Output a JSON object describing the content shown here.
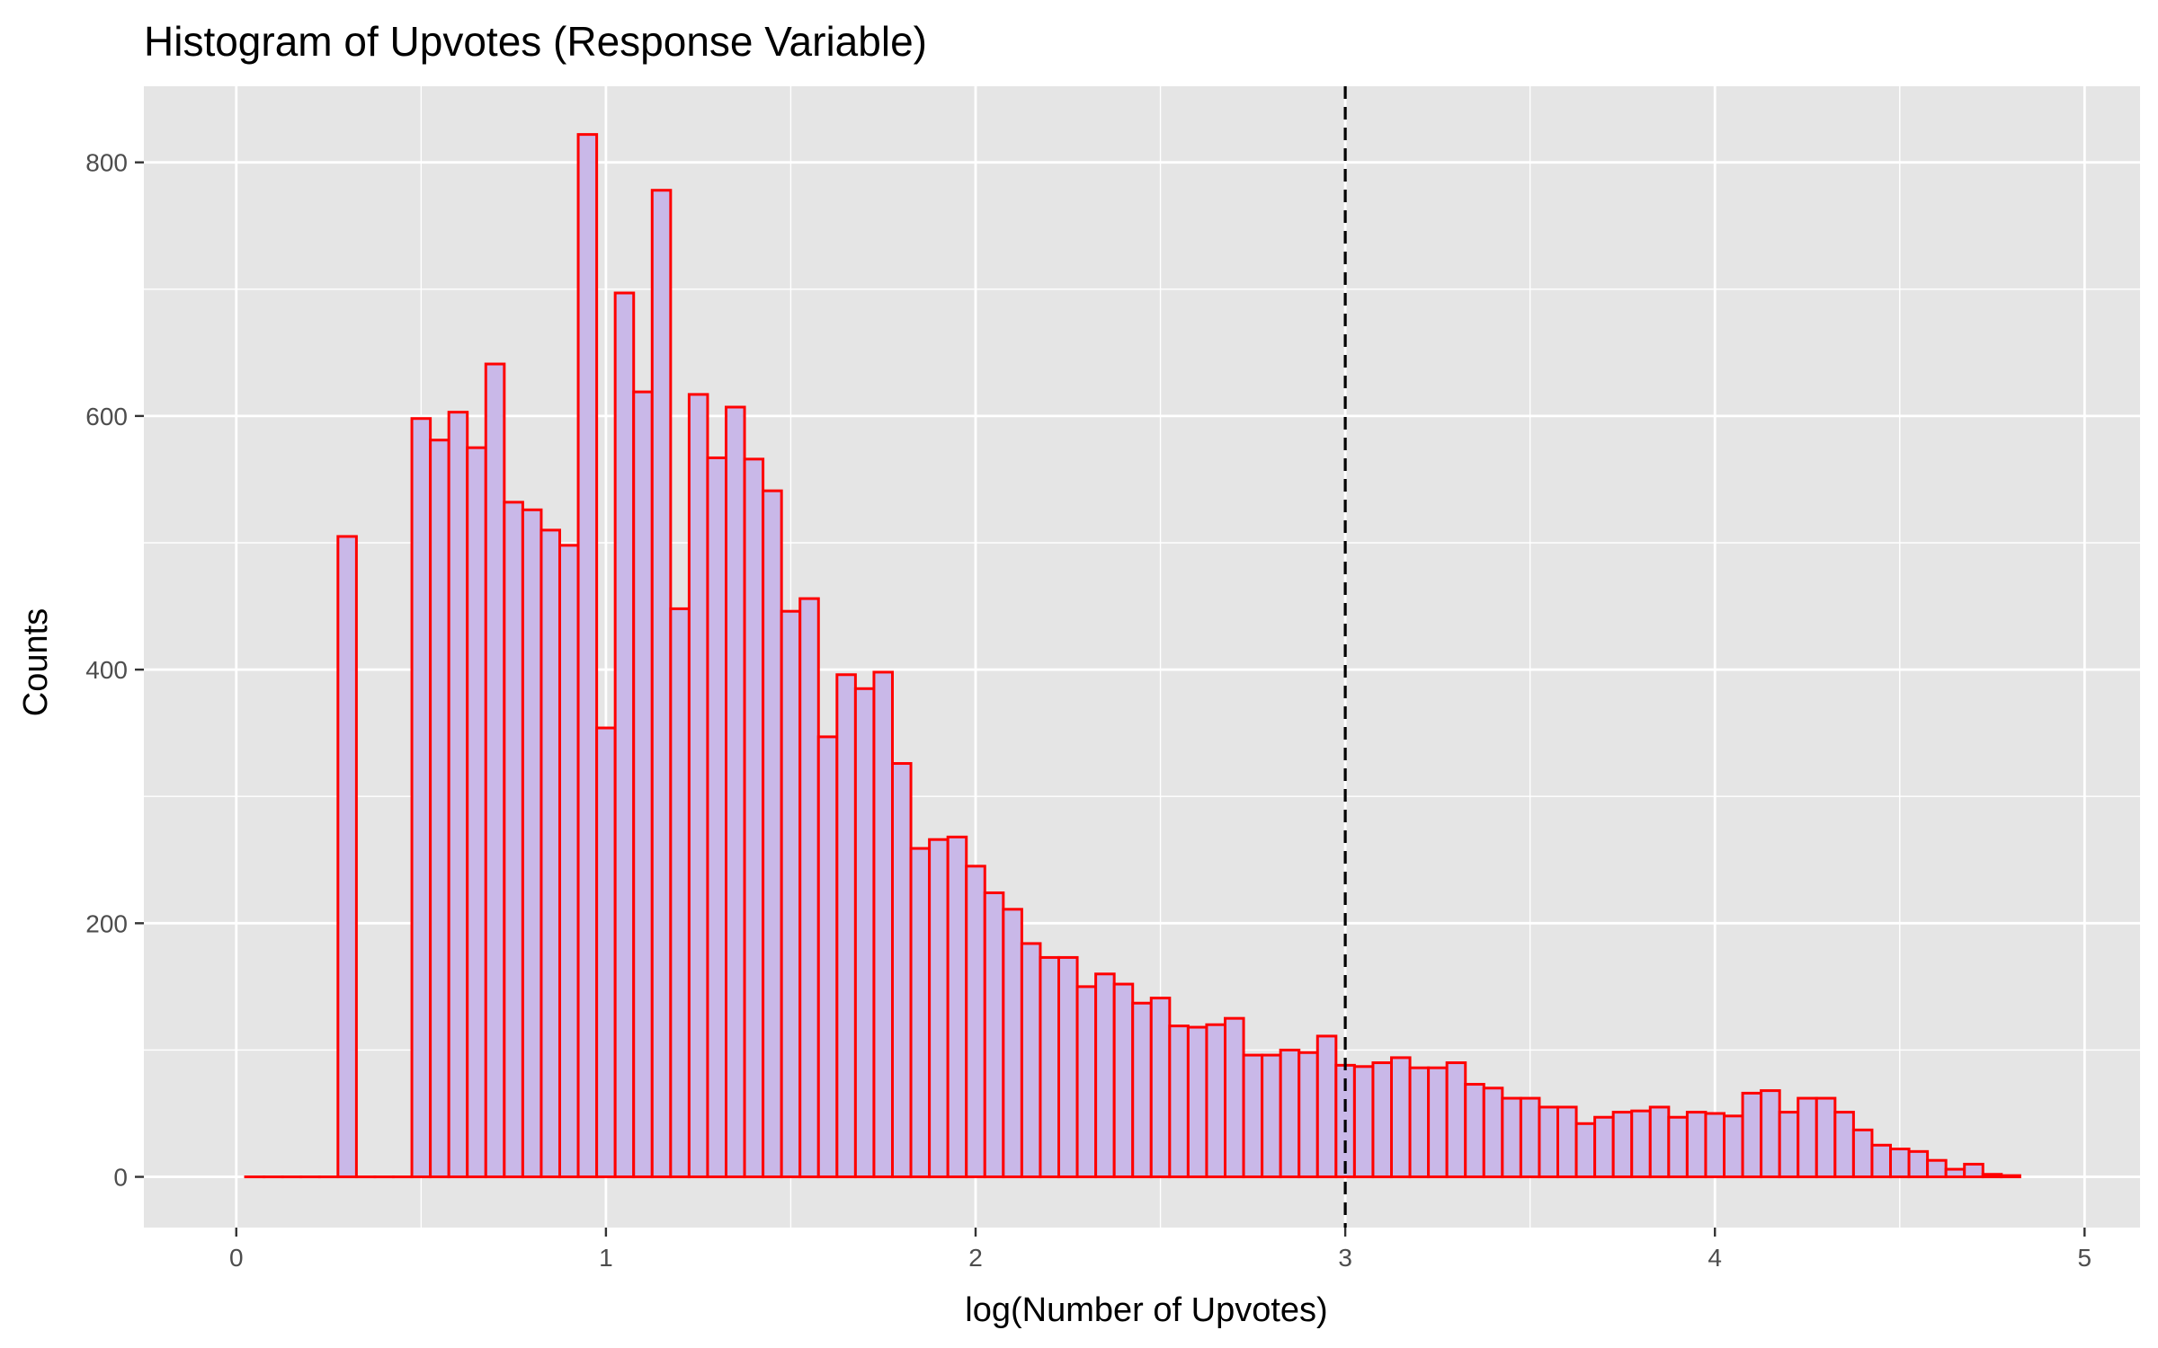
{
  "chart_data": {
    "type": "bar",
    "title": "Histogram of Upvotes (Response Variable)",
    "xlabel": "log(Number of Upvotes)",
    "ylabel": "Counts",
    "xlim": [
      -0.25,
      5.15
    ],
    "ylim": [
      -40,
      860
    ],
    "x_ticks": [
      0,
      1,
      2,
      3,
      4,
      5
    ],
    "x_tick_labels": [
      "0",
      "1",
      "2",
      "3",
      "4",
      "5"
    ],
    "y_ticks": [
      0,
      200,
      400,
      600,
      800
    ],
    "y_tick_labels": [
      "0",
      "200",
      "400",
      "600",
      "800"
    ],
    "grid": true,
    "legend": "none",
    "colors": {
      "panel_background": "#e5e5e5",
      "grid_line": "#ffffff",
      "bar_fill": "#c9b8e8",
      "bar_outline": "#ff0000",
      "reference_line": "#000000",
      "tick_mark": "#333333"
    },
    "bin_start": 0.025,
    "bin_width": 0.05,
    "values": [
      0,
      0,
      0,
      0,
      0,
      505,
      0,
      0,
      0,
      598,
      581,
      603,
      575,
      641,
      532,
      526,
      510,
      498,
      822,
      354,
      697,
      619,
      778,
      448,
      617,
      567,
      607,
      566,
      541,
      446,
      456,
      347,
      396,
      385,
      398,
      326,
      259,
      266,
      268,
      245,
      224,
      211,
      184,
      173,
      173,
      150,
      160,
      152,
      137,
      141,
      119,
      118,
      120,
      125,
      96,
      96,
      100,
      98,
      111,
      88,
      87,
      90,
      94,
      86,
      86,
      90,
      73,
      70,
      62,
      62,
      55,
      55,
      42,
      47,
      51,
      52,
      55,
      47,
      51,
      50,
      48,
      66,
      68,
      51,
      62,
      62,
      51,
      37,
      25,
      22,
      20,
      13,
      6,
      10,
      2,
      1
    ],
    "reference_line_x": 3
  }
}
